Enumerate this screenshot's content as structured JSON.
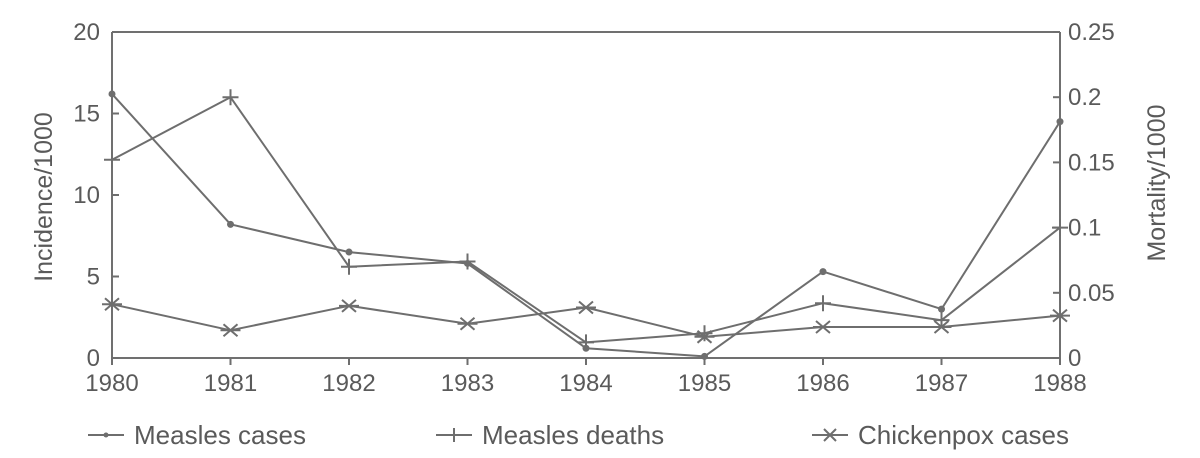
{
  "chart_data": {
    "type": "line",
    "title": "",
    "categories": [
      "1980",
      "1981",
      "1982",
      "1983",
      "1984",
      "1985",
      "1986",
      "1987",
      "1988"
    ],
    "xlabel": "",
    "ylabel": "Incidence/1000",
    "y2label": "Mortality/1000",
    "ylim": [
      0,
      20
    ],
    "y2lim": [
      0,
      0.25
    ],
    "yticks": [
      "0",
      "5",
      "10",
      "15",
      "20"
    ],
    "y2ticks": [
      "0",
      "0.05",
      "0.1",
      "0.15",
      "0.2",
      "0.25"
    ],
    "grid": false,
    "legend_position": "bottom",
    "series": [
      {
        "name": "Measles cases",
        "axis": "left",
        "marker": "dot",
        "values": [
          16.2,
          8.2,
          6.5,
          5.8,
          0.6,
          0.1,
          5.3,
          3.0,
          14.5
        ]
      },
      {
        "name": "Measles deaths",
        "axis": "right",
        "marker": "plus",
        "values": [
          0.152,
          0.2,
          0.07,
          0.074,
          0.012,
          0.019,
          0.042,
          0.029,
          0.1
        ]
      },
      {
        "name": "Chickenpox cases",
        "axis": "left",
        "marker": "star",
        "values": [
          3.3,
          1.7,
          3.2,
          2.1,
          3.1,
          1.3,
          1.9,
          1.9,
          2.6
        ]
      }
    ],
    "colors": {
      "line": "#6e6e6e",
      "text": "#5a5a5a",
      "axis": "#6e6e6e"
    }
  }
}
